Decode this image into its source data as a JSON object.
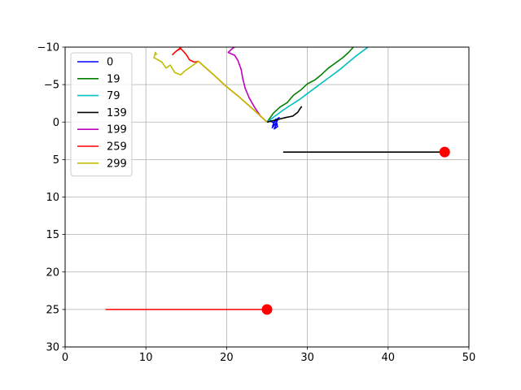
{
  "chart_data": {
    "type": "line",
    "title": "",
    "xlabel": "",
    "ylabel": "",
    "xlim": [
      0,
      50
    ],
    "ylim": [
      30,
      -10
    ],
    "y_inverted": true,
    "grid": true,
    "legend_placement": "top-left",
    "x_ticks": [
      "0",
      "10",
      "20",
      "30",
      "40",
      "50"
    ],
    "y_ticks": [
      "−10",
      "−5",
      "0",
      "5",
      "10",
      "15",
      "20",
      "25",
      "30"
    ],
    "series": [
      {
        "name": "0",
        "color": "#0000ff",
        "points": [
          [
            25,
            0
          ],
          [
            25.4,
            -0.2
          ],
          [
            25.8,
            0.1
          ],
          [
            26.1,
            -0.4
          ],
          [
            25.7,
            0.5
          ],
          [
            26.2,
            0.2
          ],
          [
            25.9,
            0.9
          ],
          [
            26.3,
            0.6
          ],
          [
            26.1,
            -0.3
          ],
          [
            26.5,
            -0.6
          ],
          [
            26.0,
            0.3
          ],
          [
            25.6,
            0.8
          ]
        ]
      },
      {
        "name": "19",
        "color": "#008000",
        "points": [
          [
            25,
            0
          ],
          [
            25.8,
            -1.2
          ],
          [
            26.6,
            -2.0
          ],
          [
            27.5,
            -2.6
          ],
          [
            28.3,
            -3.6
          ],
          [
            29.2,
            -4.3
          ],
          [
            30.0,
            -5.1
          ],
          [
            30.9,
            -5.6
          ],
          [
            31.7,
            -6.3
          ],
          [
            32.6,
            -7.2
          ],
          [
            33.5,
            -7.9
          ],
          [
            34.4,
            -8.6
          ],
          [
            35.1,
            -9.3
          ],
          [
            35.7,
            -10
          ]
        ]
      },
      {
        "name": "79",
        "color": "#00bfbf",
        "points": [
          [
            25,
            0
          ],
          [
            26.0,
            -0.8
          ],
          [
            27.0,
            -1.6
          ],
          [
            28.0,
            -2.3
          ],
          [
            29.0,
            -3.0
          ],
          [
            30.0,
            -3.8
          ],
          [
            31.0,
            -4.6
          ],
          [
            32.0,
            -5.4
          ],
          [
            33.0,
            -6.2
          ],
          [
            34.0,
            -7.0
          ],
          [
            35.0,
            -7.9
          ],
          [
            36.0,
            -8.8
          ],
          [
            37.0,
            -9.6
          ],
          [
            37.5,
            -10
          ]
        ]
      },
      {
        "name": "139",
        "color": "#000000",
        "points": [
          [
            25,
            0
          ],
          [
            25.8,
            -0.2
          ],
          [
            26.5,
            -0.4
          ],
          [
            27.3,
            -0.6
          ],
          [
            28.2,
            -0.8
          ],
          [
            28.8,
            -1.3
          ],
          [
            29.1,
            -1.8
          ],
          [
            29.3,
            -2.1
          ]
        ]
      },
      {
        "name": "199",
        "color": "#bf00bf",
        "points": [
          [
            25,
            0
          ],
          [
            24.2,
            -0.8
          ],
          [
            23.5,
            -1.9
          ],
          [
            22.8,
            -3.2
          ],
          [
            22.3,
            -4.5
          ],
          [
            22.0,
            -5.8
          ],
          [
            21.8,
            -7.0
          ],
          [
            21.4,
            -8.2
          ],
          [
            21.0,
            -8.9
          ],
          [
            20.2,
            -9.3
          ],
          [
            20.7,
            -9.8
          ],
          [
            21.0,
            -10
          ]
        ]
      },
      {
        "name": "259",
        "color": "#ff0000",
        "points": [
          [
            25,
            0
          ],
          [
            23.4,
            -1.6
          ],
          [
            21.6,
            -3.3
          ],
          [
            19.8,
            -4.9
          ],
          [
            18.3,
            -6.4
          ],
          [
            16.5,
            -8.1
          ],
          [
            16.0,
            -8.0
          ],
          [
            15.4,
            -8.3
          ],
          [
            15.0,
            -9.0
          ],
          [
            14.6,
            -9.5
          ],
          [
            14.3,
            -9.8
          ],
          [
            13.8,
            -9.5
          ],
          [
            13.3,
            -9.0
          ],
          [
            13.8,
            -9.5
          ],
          [
            14.4,
            -10
          ]
        ]
      },
      {
        "name": "299",
        "color": "#bfbf00",
        "points": [
          [
            25,
            0
          ],
          [
            23.4,
            -1.6
          ],
          [
            21.6,
            -3.3
          ],
          [
            19.8,
            -4.9
          ],
          [
            18.3,
            -6.4
          ],
          [
            16.5,
            -8.1
          ],
          [
            15.6,
            -7.4
          ],
          [
            14.8,
            -6.8
          ],
          [
            14.3,
            -6.3
          ],
          [
            13.6,
            -6.6
          ],
          [
            13.0,
            -7.6
          ],
          [
            12.5,
            -7.2
          ],
          [
            12.0,
            -8.0
          ],
          [
            11.5,
            -8.3
          ],
          [
            11.0,
            -8.6
          ],
          [
            11.2,
            -9.3
          ],
          [
            11.1,
            -9.0
          ],
          [
            11.4,
            -9.1
          ]
        ]
      }
    ],
    "extra_segments": [
      {
        "color": "#000000",
        "x": [
          27,
          47
        ],
        "y": [
          4,
          4
        ]
      },
      {
        "color": "#ff0000",
        "x": [
          5,
          25
        ],
        "y": [
          25,
          25
        ]
      }
    ],
    "markers": [
      {
        "color": "#ff0000",
        "x": 47,
        "y": 4
      },
      {
        "color": "#ff0000",
        "x": 25,
        "y": 25
      }
    ]
  }
}
